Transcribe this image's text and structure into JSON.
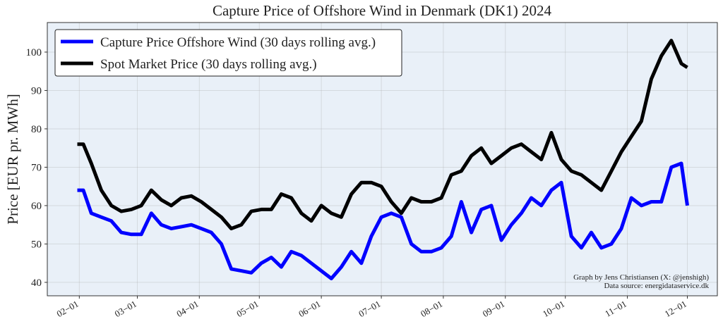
{
  "chart_data": {
    "type": "line",
    "title": "Capture Price of Offshore Wind in Denmark (DK1) 2024",
    "y_label": "Price [EUR pr. MWh]",
    "annotations": [
      "Graph by Jens Christiansen (X: @jenshigh)",
      "Data source: energidataservice.dk"
    ],
    "x": [
      "01-31",
      "02-03",
      "02-07",
      "02-12",
      "02-17",
      "02-22",
      "02-27",
      "03-03",
      "03-08",
      "03-13",
      "03-18",
      "03-23",
      "03-28",
      "04-02",
      "04-07",
      "04-12",
      "04-17",
      "04-22",
      "04-27",
      "05-02",
      "05-07",
      "05-12",
      "05-17",
      "05-22",
      "05-27",
      "06-01",
      "06-06",
      "06-11",
      "06-16",
      "06-21",
      "06-26",
      "07-01",
      "07-06",
      "07-11",
      "07-16",
      "07-21",
      "07-26",
      "07-31",
      "08-05",
      "08-10",
      "08-15",
      "08-20",
      "08-25",
      "08-30",
      "09-04",
      "09-09",
      "09-14",
      "09-19",
      "09-24",
      "09-29",
      "10-04",
      "10-09",
      "10-14",
      "10-19",
      "10-24",
      "10-29",
      "11-03",
      "11-08",
      "11-13",
      "11-18",
      "11-23",
      "11-28",
      "12-01"
    ],
    "series": [
      {
        "name": "Capture Price Offshore Wind (30 days rolling avg.)",
        "color": "#0000ff",
        "values": [
          64,
          64,
          58,
          57,
          56,
          53,
          52.5,
          52.5,
          58,
          55,
          54,
          54.5,
          55,
          54,
          53,
          50,
          43.5,
          43,
          42.5,
          45,
          46.5,
          44,
          48,
          47,
          45,
          43,
          41,
          44,
          48,
          45,
          52,
          57,
          58,
          57,
          50,
          48,
          48,
          49,
          52,
          61,
          53,
          59,
          60,
          51,
          55,
          58,
          62,
          60,
          64,
          66,
          52,
          49,
          53,
          49,
          50,
          54,
          62,
          60,
          61,
          61,
          70,
          71,
          60
        ]
      },
      {
        "name": "Spot Market Price (30 days rolling avg.)",
        "color": "#000000",
        "values": [
          76,
          76,
          71,
          64,
          60,
          58.5,
          59,
          60,
          64,
          61.5,
          60,
          62,
          62.5,
          61,
          59,
          57,
          54,
          55,
          58.5,
          59,
          59,
          63,
          62,
          58,
          56,
          60,
          58,
          57,
          63,
          66,
          66,
          65,
          61,
          58,
          62,
          61,
          61,
          62,
          68,
          69,
          73,
          75,
          71,
          73,
          75,
          76,
          74,
          72,
          79,
          72,
          69,
          68,
          66,
          64,
          69,
          74,
          78,
          82,
          93,
          99,
          103,
          97,
          96
        ]
      }
    ],
    "xlim": [
      "01-16",
      "12-16"
    ],
    "xticks": [
      {
        "value": "02-01",
        "label": "02−01"
      },
      {
        "value": "03-01",
        "label": "03−01"
      },
      {
        "value": "04-01",
        "label": "04−01"
      },
      {
        "value": "05-01",
        "label": "05−01"
      },
      {
        "value": "06-01",
        "label": "06−01"
      },
      {
        "value": "07-01",
        "label": "07−01"
      },
      {
        "value": "08-01",
        "label": "08−01"
      },
      {
        "value": "09-01",
        "label": "09−01"
      },
      {
        "value": "10-01",
        "label": "10−01"
      },
      {
        "value": "11-01",
        "label": "11−01"
      },
      {
        "value": "12-01",
        "label": "12−01"
      }
    ],
    "ylim": [
      36.5,
      107.7
    ],
    "yticks": [
      40,
      50,
      60,
      70,
      80,
      90,
      100
    ],
    "grid": true,
    "legend": "upper left",
    "background": "#e9f0f8"
  }
}
